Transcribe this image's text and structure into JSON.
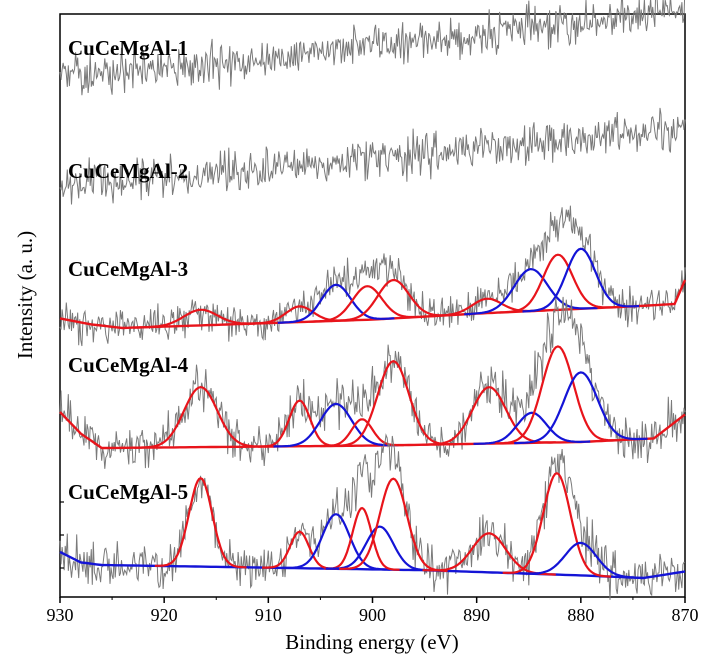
{
  "chart_data": {
    "type": "line",
    "title": "",
    "xlabel": "Binding energy (eV)",
    "ylabel": "Intensity (a. u.)",
    "xlim": [
      930,
      870
    ],
    "x_reversed": true,
    "xticks": [
      930,
      920,
      910,
      900,
      890,
      880,
      870
    ],
    "xtick_labels": [
      "930",
      "920",
      "910",
      "900",
      "890",
      "880",
      "870"
    ],
    "y_ticks_shown": false,
    "grid": false,
    "legend": "none",
    "colors": {
      "raw": "#7a7a7a",
      "fit_red": "#e8141b",
      "fit_blue": "#1414d6",
      "background_blue": "#1414d6"
    },
    "series": [
      {
        "name": "CuCeMgAl-1",
        "baseline_trend": [
          [
            930,
            0.2
          ],
          [
            920,
            0.22
          ],
          [
            910,
            0.27
          ],
          [
            900,
            0.33
          ],
          [
            890,
            0.38
          ],
          [
            880,
            0.43
          ],
          [
            870,
            0.5
          ]
        ],
        "peaks": []
      },
      {
        "name": "CuCeMgAl-2",
        "baseline_trend": [
          [
            930,
            0.2
          ],
          [
            920,
            0.24
          ],
          [
            910,
            0.28
          ],
          [
            900,
            0.33
          ],
          [
            890,
            0.38
          ],
          [
            880,
            0.43
          ],
          [
            870,
            0.48
          ]
        ],
        "peaks": []
      },
      {
        "name": "CuCeMgAl-3",
        "baseline": [
          [
            930,
            0.08
          ],
          [
            927,
            0.03
          ],
          [
            924,
            0.0
          ],
          [
            900,
            0.07
          ],
          [
            890,
            0.12
          ],
          [
            875,
            0.18
          ],
          [
            871,
            0.2
          ],
          [
            870,
            0.4
          ]
        ],
        "peaks": [
          {
            "center": 916.5,
            "height": 0.13,
            "width": 1.6,
            "color": "red"
          },
          {
            "center": 907.0,
            "height": 0.13,
            "width": 1.3,
            "color": "red"
          },
          {
            "center": 903.5,
            "height": 0.3,
            "width": 1.4,
            "color": "blue"
          },
          {
            "center": 900.5,
            "height": 0.28,
            "width": 1.4,
            "color": "red"
          },
          {
            "center": 898.0,
            "height": 0.32,
            "width": 1.5,
            "color": "red"
          },
          {
            "center": 889.0,
            "height": 0.12,
            "width": 1.4,
            "color": "red"
          },
          {
            "center": 884.8,
            "height": 0.35,
            "width": 1.6,
            "color": "blue"
          },
          {
            "center": 882.2,
            "height": 0.46,
            "width": 1.4,
            "color": "red"
          },
          {
            "center": 880.0,
            "height": 0.5,
            "width": 1.4,
            "color": "blue"
          }
        ]
      },
      {
        "name": "CuCeMgAl-4",
        "baseline": [
          [
            930,
            0.3
          ],
          [
            928,
            0.12
          ],
          [
            926,
            0.0
          ],
          [
            900,
            0.02
          ],
          [
            880,
            0.05
          ],
          [
            873,
            0.08
          ],
          [
            870,
            0.28
          ]
        ],
        "peaks": [
          {
            "center": 916.5,
            "height": 0.5,
            "width": 1.6,
            "color": "red"
          },
          {
            "center": 907.0,
            "height": 0.38,
            "width": 1.0,
            "color": "red"
          },
          {
            "center": 903.5,
            "height": 0.35,
            "width": 1.5,
            "color": "blue"
          },
          {
            "center": 901.0,
            "height": 0.22,
            "width": 1.0,
            "color": "red"
          },
          {
            "center": 898.0,
            "height": 0.7,
            "width": 1.5,
            "color": "red"
          },
          {
            "center": 888.8,
            "height": 0.47,
            "width": 1.6,
            "color": "red"
          },
          {
            "center": 884.7,
            "height": 0.25,
            "width": 1.4,
            "color": "blue"
          },
          {
            "center": 882.2,
            "height": 0.8,
            "width": 1.5,
            "color": "red"
          },
          {
            "center": 880.0,
            "height": 0.58,
            "width": 1.6,
            "color": "blue"
          }
        ]
      },
      {
        "name": "CuCeMgAl-5",
        "baseline": [
          [
            930,
            0.2
          ],
          [
            928,
            0.12
          ],
          [
            926,
            0.1
          ],
          [
            895,
            0.06
          ],
          [
            880,
            0.02
          ],
          [
            874,
            0.0
          ],
          [
            870,
            0.05
          ]
        ],
        "peaks": [
          {
            "center": 916.5,
            "height": 0.68,
            "width": 1.1,
            "color": "red"
          },
          {
            "center": 907.0,
            "height": 0.28,
            "width": 0.9,
            "color": "red"
          },
          {
            "center": 903.5,
            "height": 0.42,
            "width": 1.3,
            "color": "blue"
          },
          {
            "center": 901.0,
            "height": 0.47,
            "width": 0.9,
            "color": "red"
          },
          {
            "center": 899.3,
            "height": 0.33,
            "width": 1.3,
            "color": "blue"
          },
          {
            "center": 898.0,
            "height": 0.7,
            "width": 1.3,
            "color": "red"
          },
          {
            "center": 888.8,
            "height": 0.3,
            "width": 1.6,
            "color": "red"
          },
          {
            "center": 882.3,
            "height": 0.78,
            "width": 1.3,
            "color": "red"
          },
          {
            "center": 880.0,
            "height": 0.25,
            "width": 1.5,
            "color": "blue"
          }
        ]
      }
    ]
  }
}
